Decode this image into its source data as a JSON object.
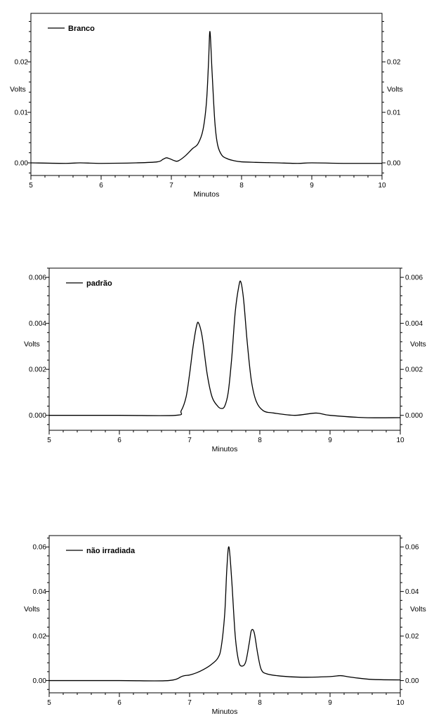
{
  "chart_data": [
    {
      "type": "line",
      "xlabel": "Minutos",
      "ylabel": "Volts",
      "xlim": [
        5,
        10
      ],
      "ylim": [
        -0.0025,
        0.0296
      ],
      "x_ticks": [
        5,
        6,
        7,
        8,
        9,
        10
      ],
      "y_ticks": [
        0.0,
        0.01,
        0.02
      ],
      "y_tick_labels": [
        "0.00",
        "0.01",
        "0.02"
      ],
      "legend": "top-left",
      "grid": false,
      "series": [
        {
          "name": "Branco",
          "color": "#000000",
          "x": [
            5.0,
            5.5,
            5.7,
            6.0,
            6.5,
            6.8,
            6.88,
            6.93,
            6.98,
            7.05,
            7.1,
            7.2,
            7.3,
            7.38,
            7.45,
            7.5,
            7.53,
            7.55,
            7.58,
            7.62,
            7.66,
            7.72,
            7.8,
            7.9,
            8.0,
            8.2,
            8.5,
            8.8,
            9.0,
            9.5,
            10.0
          ],
          "y": [
            0.0,
            -0.0001,
            0.0,
            -0.0001,
            0.0,
            0.0002,
            0.0007,
            0.001,
            0.0008,
            0.0004,
            0.0004,
            0.0014,
            0.0028,
            0.0038,
            0.0065,
            0.012,
            0.02,
            0.026,
            0.018,
            0.008,
            0.0035,
            0.0015,
            0.0008,
            0.0004,
            0.0002,
            0.0001,
            0.0,
            -0.0001,
            0.0,
            -0.0001,
            -0.0001
          ]
        }
      ]
    },
    {
      "type": "line",
      "xlabel": "Minutos",
      "ylabel": "Volts",
      "xlim": [
        5,
        10
      ],
      "ylim": [
        -0.00065,
        0.0064
      ],
      "x_ticks": [
        5,
        6,
        7,
        8,
        9,
        10
      ],
      "y_ticks": [
        0.0,
        0.002,
        0.004,
        0.006
      ],
      "y_tick_labels": [
        "0.000",
        "0.002",
        "0.004",
        "0.006"
      ],
      "legend": "top-left",
      "grid": false,
      "series": [
        {
          "name": "padrão",
          "color": "#000000",
          "x": [
            5.0,
            6.0,
            6.8,
            6.88,
            6.95,
            7.0,
            7.05,
            7.1,
            7.13,
            7.18,
            7.25,
            7.32,
            7.4,
            7.45,
            7.5,
            7.55,
            7.6,
            7.65,
            7.7,
            7.73,
            7.77,
            7.82,
            7.88,
            7.95,
            8.05,
            8.2,
            8.5,
            8.8,
            9.0,
            9.5,
            10.0
          ],
          "y": [
            0.0,
            0.0,
            0.0,
            0.0002,
            0.0008,
            0.0018,
            0.003,
            0.0039,
            0.004,
            0.0034,
            0.0018,
            0.0008,
            0.0004,
            0.0003,
            0.0004,
            0.001,
            0.0025,
            0.0045,
            0.0056,
            0.0058,
            0.005,
            0.0032,
            0.0015,
            0.0006,
            0.0002,
            0.0001,
            0.0,
            0.0001,
            0.0,
            -0.0001,
            -0.0001
          ]
        }
      ]
    },
    {
      "type": "line",
      "xlabel": "Minutos",
      "ylabel": "Volts",
      "xlim": [
        5,
        10
      ],
      "ylim": [
        -0.0055,
        0.0651
      ],
      "x_ticks": [
        5,
        6,
        7,
        8,
        9,
        10
      ],
      "y_ticks": [
        0.0,
        0.02,
        0.04,
        0.06
      ],
      "y_tick_labels": [
        "0.00",
        "0.02",
        "0.04",
        "0.06"
      ],
      "legend": "top-left",
      "grid": false,
      "series": [
        {
          "name": "não irradiada",
          "color": "#000000",
          "x": [
            5.0,
            6.0,
            6.7,
            6.9,
            7.0,
            7.1,
            7.2,
            7.3,
            7.4,
            7.45,
            7.5,
            7.53,
            7.56,
            7.6,
            7.65,
            7.7,
            7.75,
            7.8,
            7.85,
            7.88,
            7.92,
            7.97,
            8.02,
            8.1,
            8.3,
            8.6,
            9.0,
            9.15,
            9.3,
            9.6,
            10.0
          ],
          "y": [
            0.0,
            0.0,
            0.0,
            0.002,
            0.0025,
            0.0035,
            0.005,
            0.007,
            0.01,
            0.015,
            0.03,
            0.05,
            0.06,
            0.045,
            0.02,
            0.0085,
            0.0065,
            0.0085,
            0.017,
            0.0225,
            0.0215,
            0.012,
            0.005,
            0.003,
            0.002,
            0.0015,
            0.0018,
            0.0022,
            0.0015,
            0.0005,
            0.0003
          ]
        }
      ]
    }
  ]
}
